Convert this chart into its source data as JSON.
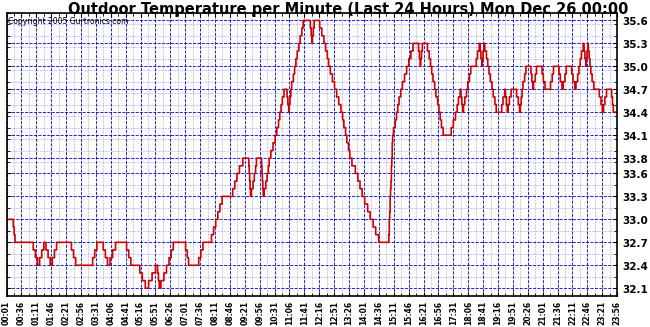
{
  "title": "Outdoor Temperature per Minute (Last 24 Hours) Mon Dec 26 00:00",
  "copyright": "Copyright 2005 Gurtronics.com",
  "bg_color": "#ffffff",
  "line_color": "#cc0000",
  "grid_color": "#0000cc",
  "y_ticks": [
    32.1,
    32.4,
    32.7,
    33.0,
    33.3,
    33.6,
    33.8,
    34.1,
    34.4,
    34.7,
    35.0,
    35.3,
    35.6
  ],
  "ylim": [
    32.0,
    35.7
  ],
  "x_labels": [
    "00:01",
    "00:36",
    "01:11",
    "01:46",
    "02:21",
    "02:56",
    "03:31",
    "04:06",
    "04:41",
    "05:16",
    "05:51",
    "06:26",
    "07:01",
    "07:36",
    "08:11",
    "08:46",
    "09:21",
    "09:56",
    "10:31",
    "11:06",
    "11:41",
    "12:16",
    "12:51",
    "13:26",
    "14:01",
    "14:36",
    "15:11",
    "15:46",
    "16:21",
    "16:56",
    "17:31",
    "18:06",
    "18:41",
    "19:16",
    "19:51",
    "20:26",
    "21:01",
    "21:36",
    "22:11",
    "22:46",
    "23:21",
    "23:56"
  ],
  "keypoints": [
    [
      0,
      33.0
    ],
    [
      15,
      33.0
    ],
    [
      20,
      32.7
    ],
    [
      60,
      32.7
    ],
    [
      75,
      32.4
    ],
    [
      90,
      32.7
    ],
    [
      105,
      32.4
    ],
    [
      120,
      32.7
    ],
    [
      150,
      32.7
    ],
    [
      165,
      32.4
    ],
    [
      200,
      32.4
    ],
    [
      215,
      32.7
    ],
    [
      225,
      32.7
    ],
    [
      240,
      32.4
    ],
    [
      260,
      32.7
    ],
    [
      280,
      32.7
    ],
    [
      295,
      32.4
    ],
    [
      310,
      32.4
    ],
    [
      330,
      32.1
    ],
    [
      355,
      32.4
    ],
    [
      360,
      32.1
    ],
    [
      380,
      32.4
    ],
    [
      395,
      32.7
    ],
    [
      420,
      32.7
    ],
    [
      430,
      32.4
    ],
    [
      450,
      32.4
    ],
    [
      465,
      32.7
    ],
    [
      480,
      32.7
    ],
    [
      495,
      33.0
    ],
    [
      510,
      33.3
    ],
    [
      530,
      33.3
    ],
    [
      545,
      33.6
    ],
    [
      560,
      33.8
    ],
    [
      570,
      33.8
    ],
    [
      575,
      33.3
    ],
    [
      585,
      33.6
    ],
    [
      590,
      33.8
    ],
    [
      600,
      33.8
    ],
    [
      605,
      33.3
    ],
    [
      615,
      33.6
    ],
    [
      620,
      33.8
    ],
    [
      635,
      34.1
    ],
    [
      645,
      34.4
    ],
    [
      655,
      34.7
    ],
    [
      660,
      34.7
    ],
    [
      665,
      34.4
    ],
    [
      670,
      34.7
    ],
    [
      680,
      35.0
    ],
    [
      690,
      35.3
    ],
    [
      700,
      35.6
    ],
    [
      715,
      35.6
    ],
    [
      720,
      35.3
    ],
    [
      725,
      35.6
    ],
    [
      735,
      35.6
    ],
    [
      750,
      35.3
    ],
    [
      760,
      35.0
    ],
    [
      775,
      34.7
    ],
    [
      790,
      34.4
    ],
    [
      800,
      34.1
    ],
    [
      810,
      33.8
    ],
    [
      825,
      33.6
    ],
    [
      840,
      33.3
    ],
    [
      860,
      33.0
    ],
    [
      880,
      32.7
    ],
    [
      900,
      32.7
    ],
    [
      910,
      34.1
    ],
    [
      920,
      34.4
    ],
    [
      930,
      34.7
    ],
    [
      945,
      35.0
    ],
    [
      960,
      35.3
    ],
    [
      970,
      35.3
    ],
    [
      975,
      35.0
    ],
    [
      980,
      35.3
    ],
    [
      990,
      35.3
    ],
    [
      1000,
      35.0
    ],
    [
      1010,
      34.7
    ],
    [
      1020,
      34.4
    ],
    [
      1030,
      34.1
    ],
    [
      1045,
      34.1
    ],
    [
      1060,
      34.4
    ],
    [
      1070,
      34.7
    ],
    [
      1075,
      34.4
    ],
    [
      1085,
      34.7
    ],
    [
      1095,
      35.0
    ],
    [
      1105,
      35.0
    ],
    [
      1115,
      35.3
    ],
    [
      1120,
      35.0
    ],
    [
      1125,
      35.3
    ],
    [
      1135,
      35.0
    ],
    [
      1145,
      34.7
    ],
    [
      1155,
      34.4
    ],
    [
      1165,
      34.4
    ],
    [
      1175,
      34.7
    ],
    [
      1180,
      34.4
    ],
    [
      1190,
      34.7
    ],
    [
      1200,
      34.7
    ],
    [
      1210,
      34.4
    ],
    [
      1215,
      34.7
    ],
    [
      1225,
      35.0
    ],
    [
      1235,
      35.0
    ],
    [
      1240,
      34.7
    ],
    [
      1250,
      35.0
    ],
    [
      1260,
      35.0
    ],
    [
      1270,
      34.7
    ],
    [
      1280,
      34.7
    ],
    [
      1290,
      35.0
    ],
    [
      1300,
      35.0
    ],
    [
      1310,
      34.7
    ],
    [
      1320,
      35.0
    ],
    [
      1330,
      35.0
    ],
    [
      1340,
      34.7
    ],
    [
      1350,
      35.0
    ],
    [
      1360,
      35.3
    ],
    [
      1365,
      35.0
    ],
    [
      1370,
      35.3
    ],
    [
      1375,
      35.0
    ],
    [
      1385,
      34.7
    ],
    [
      1395,
      34.7
    ],
    [
      1405,
      34.4
    ],
    [
      1415,
      34.7
    ],
    [
      1425,
      34.7
    ],
    [
      1430,
      34.4
    ],
    [
      1439,
      34.4
    ]
  ]
}
